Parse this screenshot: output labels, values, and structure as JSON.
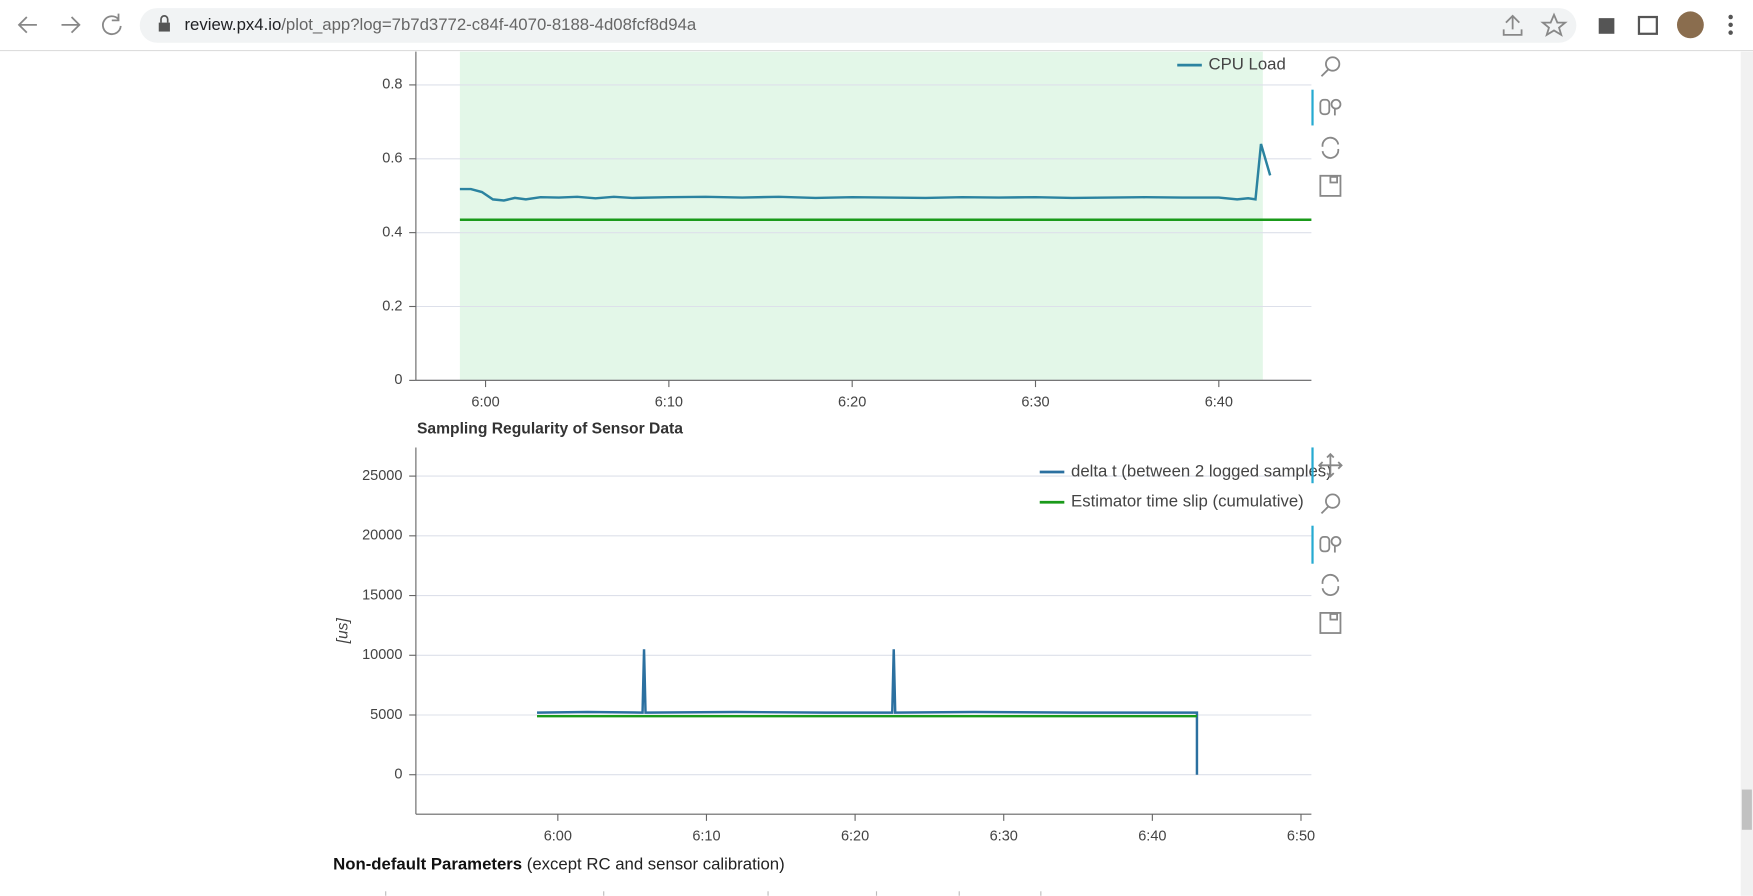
{
  "browser": {
    "url_host": "review.px4.io",
    "url_path": "/plot_app?log=7b7d3772-c84f-4070-8188-4d08fcf8d94a"
  },
  "chart_data": [
    {
      "type": "line",
      "xlim": [
        356.2,
        405.05
      ],
      "ylim": [
        0,
        0.89
      ],
      "xticks": [
        {
          "value": 360,
          "label": "6:00"
        },
        {
          "value": 370,
          "label": "6:10"
        },
        {
          "value": 380,
          "label": "6:20"
        },
        {
          "value": 390,
          "label": "6:30"
        },
        {
          "value": 400,
          "label": "6:40"
        }
      ],
      "yticks": [
        0,
        0.2,
        0.4,
        0.6,
        0.8
      ],
      "grid": true,
      "legend": "top-right",
      "highlight": [
        358.6,
        402.4
      ],
      "highlight_color": "#e3f7e8",
      "series": [
        {
          "name": "CPU Load",
          "color": "#2b83a0",
          "x": [
            358.6,
            359.2,
            359.8,
            360.4,
            361,
            361.6,
            362.2,
            363,
            364,
            365,
            366,
            367,
            368,
            370,
            372,
            374,
            376,
            378,
            380,
            382,
            384,
            386,
            388,
            390,
            392,
            394,
            396,
            398,
            400,
            401,
            401.6,
            402,
            402.3,
            402.8
          ],
          "values": [
            0.518,
            0.518,
            0.51,
            0.49,
            0.487,
            0.494,
            0.49,
            0.496,
            0.495,
            0.497,
            0.493,
            0.497,
            0.494,
            0.496,
            0.497,
            0.495,
            0.497,
            0.494,
            0.496,
            0.495,
            0.494,
            0.496,
            0.495,
            0.496,
            0.494,
            0.495,
            0.496,
            0.495,
            0.495,
            0.49,
            0.493,
            0.49,
            0.64,
            0.555
          ]
        },
        {
          "color": "#1a9a1a",
          "x": [
            358.6,
            405.05
          ],
          "values": [
            0.435,
            0.435
          ]
        }
      ]
    },
    {
      "type": "line",
      "title": "Sampling Regularity of Sensor Data",
      "y_label": "[us]",
      "xlim": [
        350.45,
        410.7
      ],
      "ylim": [
        -3300,
        27400
      ],
      "xticks": [
        {
          "value": 360,
          "label": "6:00"
        },
        {
          "value": 370,
          "label": "6:10"
        },
        {
          "value": 380,
          "label": "6:20"
        },
        {
          "value": 390,
          "label": "6:30"
        },
        {
          "value": 400,
          "label": "6:40"
        },
        {
          "value": 410,
          "label": "6:50"
        }
      ],
      "yticks": [
        0,
        5000,
        10000,
        15000,
        20000,
        25000
      ],
      "grid": true,
      "legend": "top-right",
      "series": [
        {
          "name": "delta t (between 2 logged samples)",
          "color": "#2b70a0",
          "x": [
            358.6,
            362,
            365.7,
            365.8,
            365.9,
            372,
            378,
            382.5,
            382.6,
            382.7,
            388,
            395,
            403,
            403
          ],
          "values": [
            5200,
            5250,
            5200,
            10500,
            5200,
            5250,
            5200,
            5200,
            10500,
            5200,
            5250,
            5200,
            5200,
            0
          ]
        },
        {
          "name": "Estimator time slip (cumulative)",
          "color": "#1a9a1a",
          "x": [
            358.6,
            403
          ],
          "values": [
            4900,
            4900
          ]
        }
      ]
    }
  ],
  "footer": {
    "bold": "Non-default Parameters",
    "rest": "(except RC and sensor calibration)"
  }
}
